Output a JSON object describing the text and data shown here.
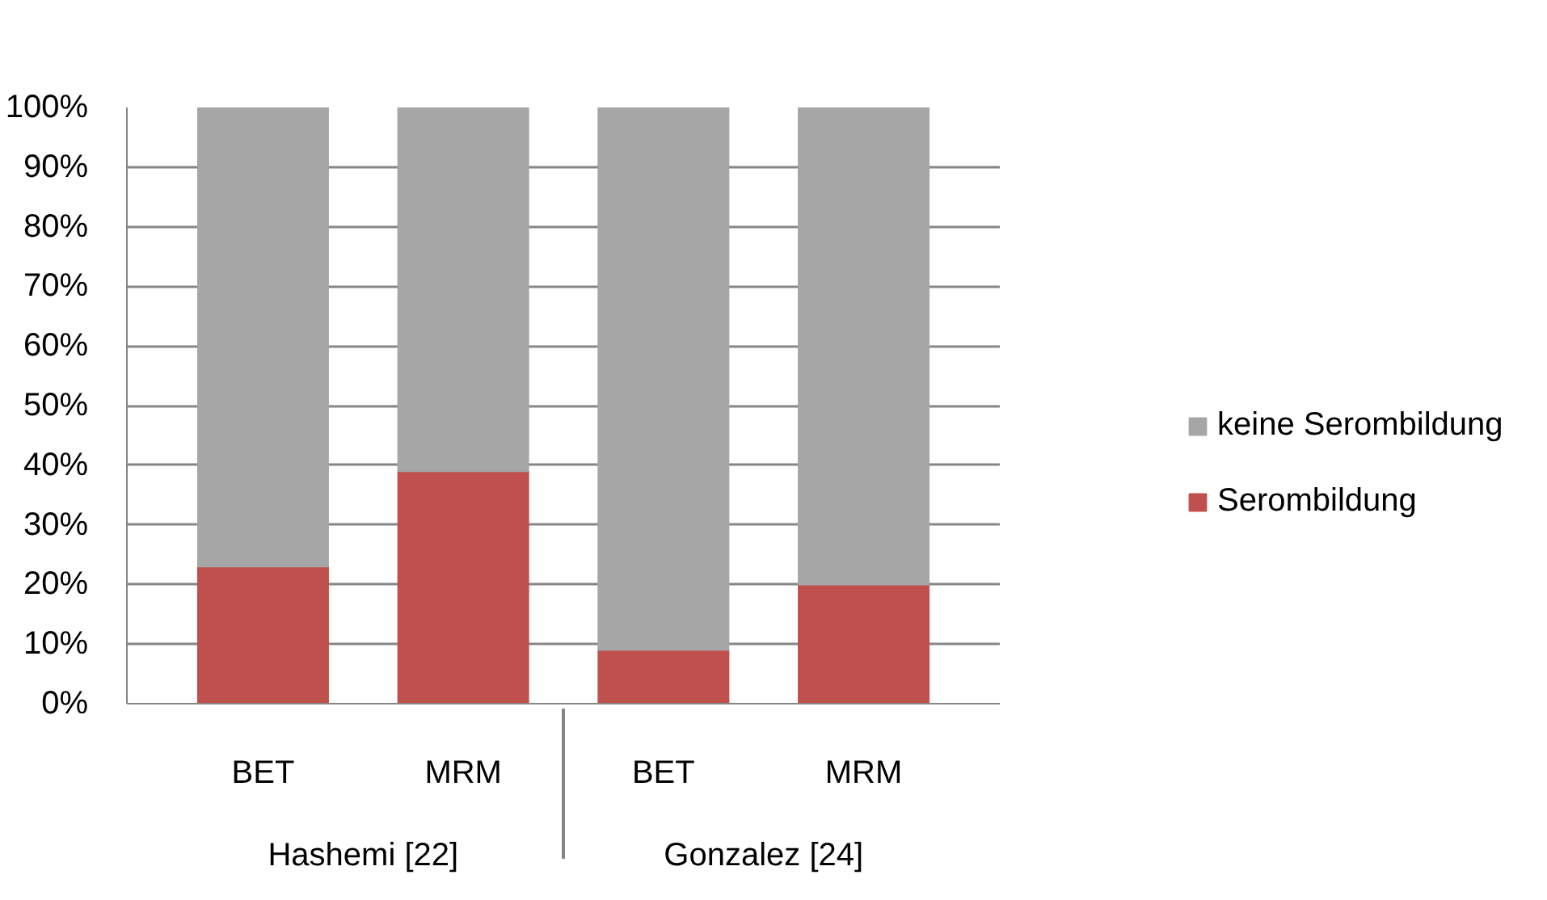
{
  "chart_data": {
    "type": "bar",
    "stacked": true,
    "categories": [
      "BET",
      "MRM",
      "BET",
      "MRM"
    ],
    "annotations": [
      "Hashemi [22]",
      "Gonzalez [24]"
    ],
    "series": [
      {
        "name": "Serombildung",
        "color": "#c0504d",
        "values": [
          23,
          39,
          9,
          20
        ]
      },
      {
        "name": "keine Serombildung",
        "color": "#a6a6a6",
        "values": [
          77,
          61,
          91,
          80
        ]
      }
    ],
    "ylim": [
      0,
      100
    ],
    "yticks": [
      {
        "value": 0,
        "label": "0%"
      },
      {
        "value": 10,
        "label": "10%"
      },
      {
        "value": 20,
        "label": "20%"
      },
      {
        "value": 30,
        "label": "30%"
      },
      {
        "value": 40,
        "label": "40%"
      },
      {
        "value": 50,
        "label": "50%"
      },
      {
        "value": 60,
        "label": "60%"
      },
      {
        "value": 70,
        "label": "70%"
      },
      {
        "value": 80,
        "label": "80%"
      },
      {
        "value": 90,
        "label": "90%"
      },
      {
        "value": 100,
        "label": "100%"
      }
    ],
    "grid": "y",
    "legend": "right"
  }
}
